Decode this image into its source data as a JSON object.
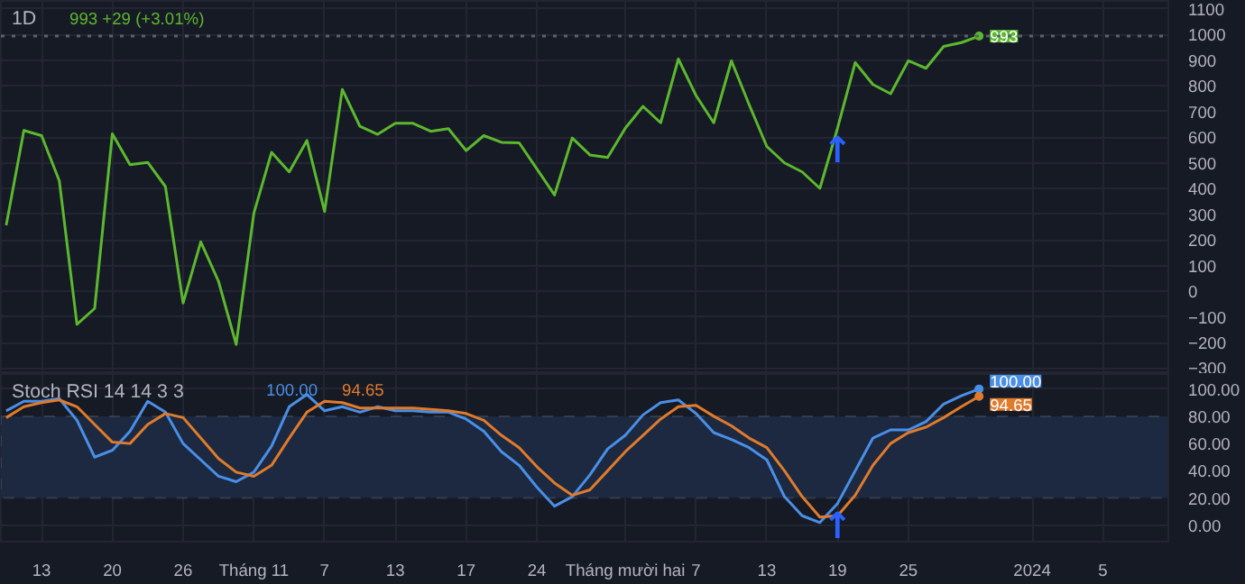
{
  "chart_data": [
    {
      "type": "line",
      "title": "1D",
      "subtitle": "993 +29 (+3.01%)",
      "categories": [
        null,
        null,
        null,
        null,
        null,
        null,
        null,
        null,
        null,
        null,
        null,
        null,
        null,
        null,
        null,
        null,
        null,
        null,
        null,
        null,
        null,
        null,
        null,
        null,
        null,
        null,
        null,
        null,
        null,
        null,
        null,
        null,
        null,
        null,
        null,
        null,
        null,
        null,
        null,
        null,
        null,
        null,
        null,
        null,
        null,
        null,
        null,
        null,
        null,
        null,
        null,
        null,
        null,
        null,
        null,
        null,
        null,
        null,
        null,
        null,
        null,
        null,
        null,
        null,
        null,
        null
      ],
      "series": [
        {
          "color": "#5cb82e",
          "values": [
            257,
            626,
            606,
            431,
            -128,
            -66,
            613,
            493,
            502,
            408,
            -45,
            193,
            40,
            -206,
            304,
            541,
            465,
            587,
            311,
            786,
            642,
            611,
            654,
            654,
            623,
            633,
            548,
            606,
            580,
            578,
            477,
            375,
            597,
            531,
            521,
            635,
            720,
            656,
            904,
            762,
            656,
            897,
            727,
            564,
            500,
            465,
            401,
            635,
            890,
            805,
            769,
            897,
            868,
            953,
            968,
            993,
            null,
            null,
            null,
            null,
            null,
            null,
            null,
            null,
            null,
            null
          ],
          "value_labels": [
            null,
            null,
            null,
            null,
            null,
            null,
            null,
            null,
            null,
            null,
            null,
            null,
            null,
            null,
            null,
            null,
            null,
            null,
            null,
            null,
            null,
            null,
            null,
            null,
            null,
            null,
            null,
            null,
            null,
            null,
            null,
            null,
            null,
            null,
            null,
            null,
            null,
            null,
            null,
            null,
            null,
            null,
            null,
            null,
            null,
            null,
            null,
            null,
            null,
            null,
            null,
            null,
            null,
            null,
            null,
            "993",
            null,
            null,
            null,
            null,
            null,
            null,
            null,
            null,
            null,
            null
          ]
        }
      ],
      "ylim": [
        -321,
        1130
      ],
      "yticks": [
        {
          "value": -300,
          "label": "−300"
        },
        {
          "value": -200,
          "label": "−200"
        },
        {
          "value": -100,
          "label": "−100"
        },
        0,
        100,
        200,
        300,
        400,
        500,
        600,
        700,
        800,
        900,
        1000,
        1100
      ],
      "tick_labels": "y",
      "grid": true,
      "ref_lines": [
        {
          "axis": "y",
          "value": 993,
          "color": "#5a6070",
          "line_style": "dotted"
        }
      ],
      "annotations": [
        "↑"
      ]
    },
    {
      "type": "line",
      "title": "Stoch RSI 14 14 3 3",
      "categories": [
        null,
        null,
        "13",
        null,
        null,
        null,
        "20",
        null,
        null,
        null,
        "26",
        null,
        null,
        null,
        "Tháng 11",
        null,
        null,
        null,
        "7",
        null,
        null,
        null,
        "13",
        null,
        null,
        null,
        "17",
        null,
        null,
        null,
        "24",
        null,
        null,
        null,
        null,
        "Tháng mười hai",
        null,
        null,
        null,
        "7",
        null,
        null,
        null,
        "13",
        null,
        null,
        null,
        "19",
        null,
        null,
        null,
        "25",
        null,
        null,
        null,
        null,
        null,
        null,
        "2024",
        null,
        null,
        null,
        "5",
        null,
        null,
        null
      ],
      "series": [
        {
          "color": "#4a8fe7",
          "values": [
            84,
            91,
            91,
            93,
            77,
            50,
            55,
            69,
            91,
            83,
            60,
            48,
            36,
            32,
            39,
            58,
            87,
            96,
            84,
            87,
            83,
            87,
            84,
            84,
            83,
            83,
            78,
            69,
            54,
            44,
            28,
            14,
            21,
            37,
            56,
            66,
            81,
            90,
            92,
            82,
            68,
            63,
            57,
            48,
            21,
            7,
            2,
            16,
            40,
            64,
            70,
            70,
            76,
            89,
            95,
            100,
            null,
            null,
            null,
            null,
            null,
            null,
            null,
            null,
            null,
            null
          ],
          "value_labels": [
            null,
            null,
            null,
            null,
            null,
            null,
            null,
            null,
            null,
            null,
            null,
            null,
            null,
            null,
            null,
            null,
            null,
            null,
            null,
            null,
            null,
            null,
            null,
            null,
            null,
            null,
            null,
            null,
            null,
            null,
            null,
            null,
            null,
            null,
            null,
            null,
            null,
            null,
            null,
            null,
            null,
            null,
            null,
            null,
            null,
            null,
            null,
            null,
            null,
            null,
            null,
            null,
            null,
            null,
            null,
            "100.00",
            null,
            null,
            null,
            null,
            null,
            null,
            null,
            null,
            null,
            null
          ]
        },
        {
          "color": "#e07b2c",
          "values": [
            79,
            87,
            90,
            92,
            87,
            74,
            61,
            60,
            74,
            82,
            79,
            64,
            49,
            39,
            36,
            44,
            64,
            83,
            91,
            90,
            86,
            86,
            86,
            86,
            85,
            84,
            82,
            77,
            66,
            57,
            43,
            31,
            22,
            26,
            40,
            54,
            66,
            78,
            87,
            88,
            80,
            73,
            64,
            57,
            40,
            21,
            6,
            7,
            22,
            44,
            60,
            68,
            72,
            79,
            87,
            94.65,
            null,
            null,
            null,
            null,
            null,
            null,
            null,
            null,
            null,
            null
          ],
          "value_labels": [
            null,
            null,
            null,
            null,
            null,
            null,
            null,
            null,
            null,
            null,
            null,
            null,
            null,
            null,
            null,
            null,
            null,
            null,
            null,
            null,
            null,
            null,
            null,
            null,
            null,
            null,
            null,
            null,
            null,
            null,
            null,
            null,
            null,
            null,
            null,
            null,
            null,
            null,
            null,
            null,
            null,
            null,
            null,
            null,
            null,
            null,
            null,
            null,
            null,
            null,
            null,
            null,
            null,
            null,
            null,
            "94.65",
            null,
            null,
            null,
            null,
            null,
            null,
            null,
            null,
            null,
            null
          ]
        }
      ],
      "ylim": [
        -12,
        111
      ],
      "yticks": [
        {
          "value": 0,
          "label": "0.00"
        },
        {
          "value": 20,
          "label": "20.00"
        },
        {
          "value": 40,
          "label": "40.00"
        },
        {
          "value": 60,
          "label": "60.00"
        },
        {
          "value": 80,
          "label": "80.00"
        },
        {
          "value": 100,
          "label": "100.00"
        }
      ],
      "grid": true,
      "bands": [
        {
          "axis": "y",
          "from": 20,
          "to": 80,
          "color": "#1c2940"
        }
      ],
      "annotations": [
        {
          "text": "↑",
          "x": "19",
          "y": 16
        }
      ]
    }
  ]
}
